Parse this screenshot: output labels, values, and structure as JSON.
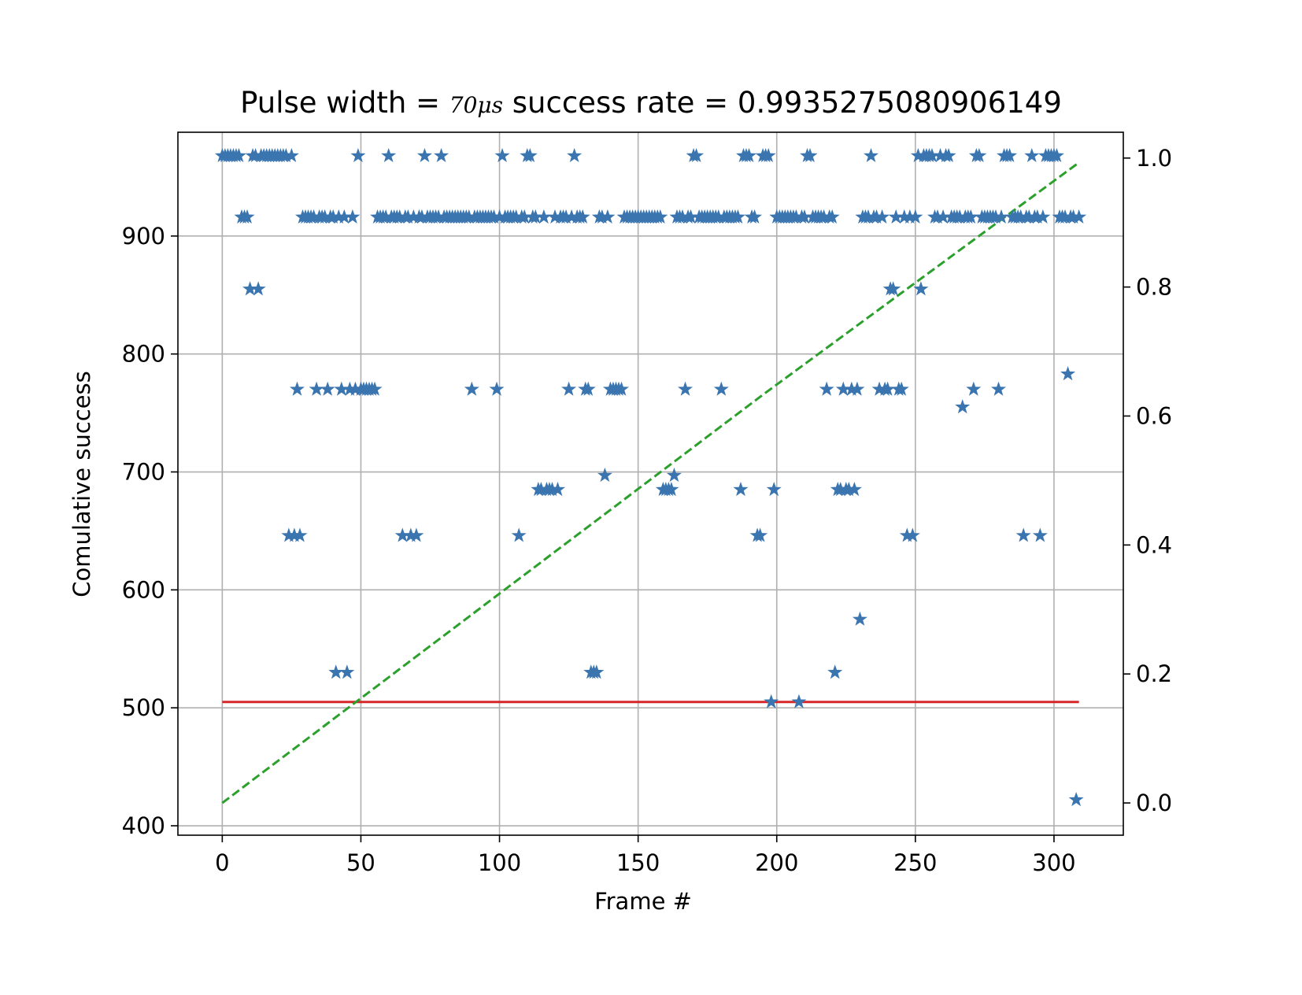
{
  "chart_data": {
    "type": "scatter",
    "title": {
      "prefix": "Pulse width = ",
      "math": "70μs",
      "suffix": " success rate = 0.9935275080906149"
    },
    "xlabel": "Frame #",
    "ylabel": "Comulative success",
    "xlim": [
      -16,
      325
    ],
    "ylim": [
      392,
      988
    ],
    "y2lim": [
      -0.05,
      1.04
    ],
    "grid": true,
    "x_ticks": [
      0,
      50,
      100,
      150,
      200,
      250,
      300
    ],
    "x_tick_labels": [
      "0",
      "50",
      "100",
      "150",
      "200",
      "250",
      "300"
    ],
    "y_ticks": [
      400,
      500,
      600,
      700,
      800,
      900
    ],
    "y_tick_labels": [
      "400",
      "500",
      "600",
      "700",
      "800",
      "900"
    ],
    "y2_ticks": [
      0.0,
      0.2,
      0.4,
      0.6,
      0.8,
      1.0
    ],
    "y2_tick_labels": [
      "0.0",
      "0.2",
      "0.4",
      "0.6",
      "0.8",
      "1.0"
    ],
    "series": [
      {
        "kind": "scatter",
        "axis": "left",
        "marker": "star",
        "color": "#3b75af",
        "points": [
          [
            0,
            968
          ],
          [
            1,
            968
          ],
          [
            2,
            968
          ],
          [
            3,
            968
          ],
          [
            4,
            968
          ],
          [
            5,
            968
          ],
          [
            6,
            968
          ],
          [
            7,
            916
          ],
          [
            8,
            916
          ],
          [
            9,
            916
          ],
          [
            10,
            855
          ],
          [
            11,
            968
          ],
          [
            12,
            968
          ],
          [
            13,
            855
          ],
          [
            14,
            968
          ],
          [
            15,
            968
          ],
          [
            16,
            968
          ],
          [
            17,
            968
          ],
          [
            18,
            968
          ],
          [
            19,
            968
          ],
          [
            20,
            968
          ],
          [
            21,
            968
          ],
          [
            22,
            968
          ],
          [
            23,
            968
          ],
          [
            24,
            646
          ],
          [
            25,
            968
          ],
          [
            26,
            646
          ],
          [
            27,
            770
          ],
          [
            28,
            646
          ],
          [
            29,
            916
          ],
          [
            30,
            916
          ],
          [
            31,
            916
          ],
          [
            32,
            916
          ],
          [
            33,
            916
          ],
          [
            34,
            770
          ],
          [
            35,
            916
          ],
          [
            36,
            916
          ],
          [
            37,
            916
          ],
          [
            38,
            770
          ],
          [
            39,
            916
          ],
          [
            40,
            916
          ],
          [
            41,
            530
          ],
          [
            42,
            916
          ],
          [
            43,
            770
          ],
          [
            44,
            916
          ],
          [
            45,
            530
          ],
          [
            46,
            770
          ],
          [
            47,
            916
          ],
          [
            48,
            770
          ],
          [
            49,
            968
          ],
          [
            50,
            770
          ],
          [
            51,
            770
          ],
          [
            52,
            770
          ],
          [
            53,
            770
          ],
          [
            54,
            770
          ],
          [
            55,
            770
          ],
          [
            56,
            916
          ],
          [
            57,
            916
          ],
          [
            58,
            916
          ],
          [
            59,
            916
          ],
          [
            60,
            968
          ],
          [
            61,
            916
          ],
          [
            62,
            916
          ],
          [
            63,
            916
          ],
          [
            64,
            916
          ],
          [
            65,
            646
          ],
          [
            66,
            916
          ],
          [
            67,
            916
          ],
          [
            68,
            646
          ],
          [
            69,
            916
          ],
          [
            70,
            646
          ],
          [
            71,
            916
          ],
          [
            72,
            916
          ],
          [
            73,
            968
          ],
          [
            74,
            916
          ],
          [
            75,
            916
          ],
          [
            76,
            916
          ],
          [
            77,
            916
          ],
          [
            78,
            916
          ],
          [
            79,
            968
          ],
          [
            80,
            916
          ],
          [
            81,
            916
          ],
          [
            82,
            916
          ],
          [
            83,
            916
          ],
          [
            84,
            916
          ],
          [
            85,
            916
          ],
          [
            86,
            916
          ],
          [
            87,
            916
          ],
          [
            88,
            916
          ],
          [
            89,
            916
          ],
          [
            90,
            770
          ],
          [
            91,
            916
          ],
          [
            92,
            916
          ],
          [
            93,
            916
          ],
          [
            94,
            916
          ],
          [
            95,
            916
          ],
          [
            96,
            916
          ],
          [
            97,
            916
          ],
          [
            98,
            916
          ],
          [
            99,
            770
          ],
          [
            100,
            916
          ],
          [
            101,
            968
          ],
          [
            102,
            916
          ],
          [
            103,
            916
          ],
          [
            104,
            916
          ],
          [
            105,
            916
          ],
          [
            106,
            916
          ],
          [
            107,
            646
          ],
          [
            108,
            916
          ],
          [
            109,
            916
          ],
          [
            110,
            968
          ],
          [
            111,
            968
          ],
          [
            112,
            916
          ],
          [
            113,
            916
          ],
          [
            114,
            685
          ],
          [
            115,
            685
          ],
          [
            116,
            916
          ],
          [
            117,
            685
          ],
          [
            118,
            685
          ],
          [
            119,
            685
          ],
          [
            120,
            916
          ],
          [
            121,
            685
          ],
          [
            122,
            916
          ],
          [
            123,
            916
          ],
          [
            124,
            916
          ],
          [
            125,
            770
          ],
          [
            126,
            916
          ],
          [
            127,
            968
          ],
          [
            128,
            916
          ],
          [
            129,
            916
          ],
          [
            130,
            916
          ],
          [
            131,
            770
          ],
          [
            132,
            770
          ],
          [
            133,
            530
          ],
          [
            134,
            530
          ],
          [
            135,
            530
          ],
          [
            136,
            916
          ],
          [
            137,
            916
          ],
          [
            138,
            697
          ],
          [
            139,
            916
          ],
          [
            140,
            770
          ],
          [
            141,
            770
          ],
          [
            142,
            770
          ],
          [
            143,
            770
          ],
          [
            144,
            770
          ],
          [
            145,
            916
          ],
          [
            146,
            916
          ],
          [
            147,
            916
          ],
          [
            148,
            916
          ],
          [
            149,
            916
          ],
          [
            150,
            916
          ],
          [
            151,
            916
          ],
          [
            152,
            916
          ],
          [
            153,
            916
          ],
          [
            154,
            916
          ],
          [
            155,
            916
          ],
          [
            156,
            916
          ],
          [
            157,
            916
          ],
          [
            158,
            916
          ],
          [
            159,
            685
          ],
          [
            160,
            685
          ],
          [
            161,
            685
          ],
          [
            162,
            685
          ],
          [
            163,
            697
          ],
          [
            164,
            916
          ],
          [
            165,
            916
          ],
          [
            166,
            916
          ],
          [
            167,
            770
          ],
          [
            168,
            916
          ],
          [
            169,
            916
          ],
          [
            170,
            968
          ],
          [
            171,
            968
          ],
          [
            172,
            916
          ],
          [
            173,
            916
          ],
          [
            174,
            916
          ],
          [
            175,
            916
          ],
          [
            176,
            916
          ],
          [
            177,
            916
          ],
          [
            178,
            916
          ],
          [
            179,
            916
          ],
          [
            180,
            770
          ],
          [
            181,
            916
          ],
          [
            182,
            916
          ],
          [
            183,
            916
          ],
          [
            184,
            916
          ],
          [
            185,
            916
          ],
          [
            186,
            916
          ],
          [
            187,
            685
          ],
          [
            188,
            968
          ],
          [
            189,
            968
          ],
          [
            190,
            968
          ],
          [
            191,
            916
          ],
          [
            192,
            916
          ],
          [
            193,
            646
          ],
          [
            194,
            646
          ],
          [
            195,
            968
          ],
          [
            196,
            968
          ],
          [
            197,
            968
          ],
          [
            198,
            505
          ],
          [
            199,
            685
          ],
          [
            200,
            916
          ],
          [
            201,
            916
          ],
          [
            202,
            916
          ],
          [
            203,
            916
          ],
          [
            204,
            916
          ],
          [
            205,
            916
          ],
          [
            206,
            916
          ],
          [
            207,
            916
          ],
          [
            208,
            505
          ],
          [
            209,
            916
          ],
          [
            210,
            916
          ],
          [
            211,
            968
          ],
          [
            212,
            968
          ],
          [
            213,
            916
          ],
          [
            214,
            916
          ],
          [
            215,
            916
          ],
          [
            216,
            916
          ],
          [
            217,
            916
          ],
          [
            218,
            770
          ],
          [
            219,
            916
          ],
          [
            220,
            916
          ],
          [
            221,
            530
          ],
          [
            222,
            685
          ],
          [
            223,
            685
          ],
          [
            224,
            770
          ],
          [
            225,
            685
          ],
          [
            226,
            685
          ],
          [
            227,
            770
          ],
          [
            228,
            685
          ],
          [
            229,
            770
          ],
          [
            230,
            575
          ],
          [
            231,
            916
          ],
          [
            232,
            916
          ],
          [
            233,
            916
          ],
          [
            234,
            968
          ],
          [
            235,
            916
          ],
          [
            236,
            916
          ],
          [
            237,
            770
          ],
          [
            238,
            916
          ],
          [
            239,
            770
          ],
          [
            240,
            770
          ],
          [
            241,
            855
          ],
          [
            242,
            855
          ],
          [
            243,
            916
          ],
          [
            244,
            770
          ],
          [
            245,
            770
          ],
          [
            246,
            916
          ],
          [
            247,
            646
          ],
          [
            248,
            916
          ],
          [
            249,
            646
          ],
          [
            250,
            916
          ],
          [
            251,
            968
          ],
          [
            252,
            855
          ],
          [
            253,
            968
          ],
          [
            254,
            968
          ],
          [
            255,
            968
          ],
          [
            256,
            968
          ],
          [
            257,
            916
          ],
          [
            258,
            916
          ],
          [
            259,
            968
          ],
          [
            260,
            916
          ],
          [
            261,
            968
          ],
          [
            262,
            968
          ],
          [
            263,
            916
          ],
          [
            264,
            916
          ],
          [
            265,
            916
          ],
          [
            266,
            916
          ],
          [
            267,
            755
          ],
          [
            268,
            916
          ],
          [
            269,
            916
          ],
          [
            270,
            916
          ],
          [
            271,
            770
          ],
          [
            272,
            968
          ],
          [
            273,
            968
          ],
          [
            274,
            916
          ],
          [
            275,
            916
          ],
          [
            276,
            916
          ],
          [
            277,
            916
          ],
          [
            278,
            916
          ],
          [
            279,
            916
          ],
          [
            280,
            770
          ],
          [
            281,
            916
          ],
          [
            282,
            968
          ],
          [
            283,
            968
          ],
          [
            284,
            968
          ],
          [
            285,
            916
          ],
          [
            286,
            916
          ],
          [
            287,
            916
          ],
          [
            288,
            916
          ],
          [
            289,
            646
          ],
          [
            290,
            916
          ],
          [
            291,
            916
          ],
          [
            292,
            968
          ],
          [
            293,
            916
          ],
          [
            294,
            916
          ],
          [
            295,
            646
          ],
          [
            296,
            916
          ],
          [
            297,
            968
          ],
          [
            298,
            968
          ],
          [
            299,
            968
          ],
          [
            300,
            968
          ],
          [
            301,
            968
          ],
          [
            302,
            916
          ],
          [
            303,
            916
          ],
          [
            304,
            916
          ],
          [
            305,
            783
          ],
          [
            306,
            916
          ],
          [
            307,
            916
          ],
          [
            308,
            422
          ],
          [
            309,
            916
          ]
        ]
      },
      {
        "kind": "line",
        "axis": "left",
        "color": "#d62728",
        "style": "solid",
        "x": [
          0,
          309
        ],
        "y": [
          505,
          505
        ]
      },
      {
        "kind": "line",
        "axis": "right",
        "color": "#2ca02c",
        "style": "dashed",
        "x": [
          0,
          195,
          208,
          309
        ],
        "y": [
          0.0,
          0.633,
          0.674,
          0.993
        ]
      }
    ]
  }
}
